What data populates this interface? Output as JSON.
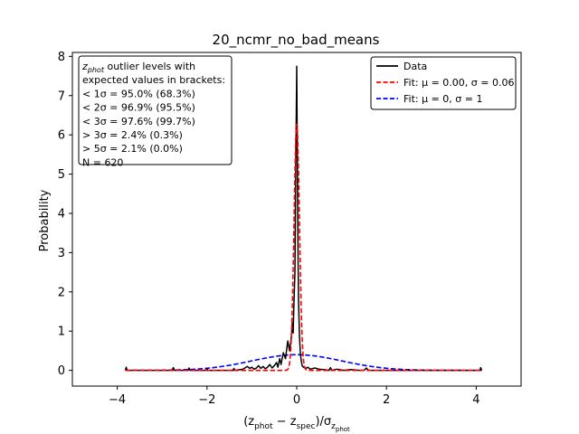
{
  "chart_data": {
    "type": "line",
    "title": "20_ncmr_no_bad_means",
    "xlabel": "(z_phot − z_spec)/σ_z_phot",
    "ylabel": "Probability",
    "xlim": [
      -5,
      5
    ],
    "ylim": [
      -0.4,
      8.1
    ],
    "xticks": [
      -4,
      -2,
      0,
      2,
      4
    ],
    "xtick_labels": [
      "−4",
      "−2",
      "0",
      "2",
      "4"
    ],
    "yticks": [
      0,
      1,
      2,
      3,
      4,
      5,
      6,
      7,
      8
    ],
    "ytick_labels": [
      "0",
      "1",
      "2",
      "3",
      "4",
      "5",
      "6",
      "7",
      "8"
    ],
    "grid": false,
    "legend": {
      "placement": "top-right",
      "entries": [
        "Data",
        "Fit: μ = 0.00, σ = 0.06",
        "Fit: μ = 0, σ = 1"
      ]
    },
    "annotation_box": {
      "placement": "top-left",
      "lines": [
        "z_phot outlier levels with",
        " expected values in brackets:",
        "< 1σ = 95.0% (68.3%)",
        "< 2σ = 96.9% (95.5%)",
        "< 3σ = 97.6% (99.7%)",
        "> 3σ = 2.4% (0.3%)",
        "> 5σ = 2.1% (0.0%)",
        "N = 620"
      ]
    },
    "series": [
      {
        "name": "Data",
        "color": "#000000",
        "style": "solid",
        "x": [
          -3.82,
          -3.8,
          -3.78,
          -3.5,
          -3.0,
          -2.78,
          -2.75,
          -2.72,
          -2.5,
          -2.42,
          -2.4,
          -2.38,
          -2.2,
          -2.02,
          -2.0,
          -1.98,
          -1.7,
          -1.42,
          -1.4,
          -1.38,
          -1.2,
          -1.1,
          -1.05,
          -1.0,
          -0.95,
          -0.9,
          -0.85,
          -0.8,
          -0.75,
          -0.7,
          -0.65,
          -0.6,
          -0.55,
          -0.5,
          -0.45,
          -0.42,
          -0.38,
          -0.35,
          -0.3,
          -0.25,
          -0.2,
          -0.16,
          -0.12,
          -0.1,
          -0.08,
          -0.06,
          -0.04,
          -0.03,
          -0.02,
          -0.01,
          0.0,
          0.01,
          0.02,
          0.03,
          0.04,
          0.06,
          0.08,
          0.1,
          0.12,
          0.15,
          0.2,
          0.25,
          0.3,
          0.4,
          0.5,
          0.6,
          0.72,
          0.75,
          0.78,
          0.9,
          1.05,
          1.2,
          1.4,
          1.5,
          1.55,
          1.6,
          1.7,
          2.0,
          2.5,
          3.0,
          3.5,
          4.0,
          4.08,
          4.1,
          4.12
        ],
        "y": [
          0.0,
          0.08,
          0.0,
          0.0,
          0.0,
          0.0,
          0.07,
          0.0,
          0.0,
          0.0,
          0.06,
          0.0,
          0.0,
          0.0,
          0.05,
          0.0,
          0.0,
          0.0,
          0.05,
          0.0,
          0.03,
          0.1,
          0.05,
          0.08,
          0.03,
          0.06,
          0.12,
          0.05,
          0.1,
          0.04,
          0.08,
          0.15,
          0.06,
          0.12,
          0.2,
          0.08,
          0.3,
          0.15,
          0.45,
          0.3,
          0.75,
          0.5,
          0.85,
          1.2,
          0.95,
          1.8,
          2.5,
          4.0,
          5.5,
          6.5,
          7.75,
          6.0,
          4.2,
          2.8,
          1.8,
          0.9,
          0.45,
          0.25,
          0.12,
          0.08,
          0.05,
          0.08,
          0.03,
          0.06,
          0.03,
          0.02,
          0.0,
          0.07,
          0.0,
          0.03,
          0.0,
          0.02,
          0.0,
          0.0,
          0.06,
          0.0,
          0.0,
          0.0,
          0.0,
          0.0,
          0.0,
          0.0,
          0.0,
          0.07,
          0.0
        ]
      },
      {
        "name": "Fit: μ = 0.00, σ = 0.06",
        "color": "#ff0000",
        "style": "dashed",
        "mu": 0.0,
        "sigma": 0.06
      },
      {
        "name": "Fit: μ = 0, σ = 1",
        "color": "#0000ff",
        "style": "dashed",
        "mu": 0.0,
        "sigma": 1.0
      }
    ]
  }
}
